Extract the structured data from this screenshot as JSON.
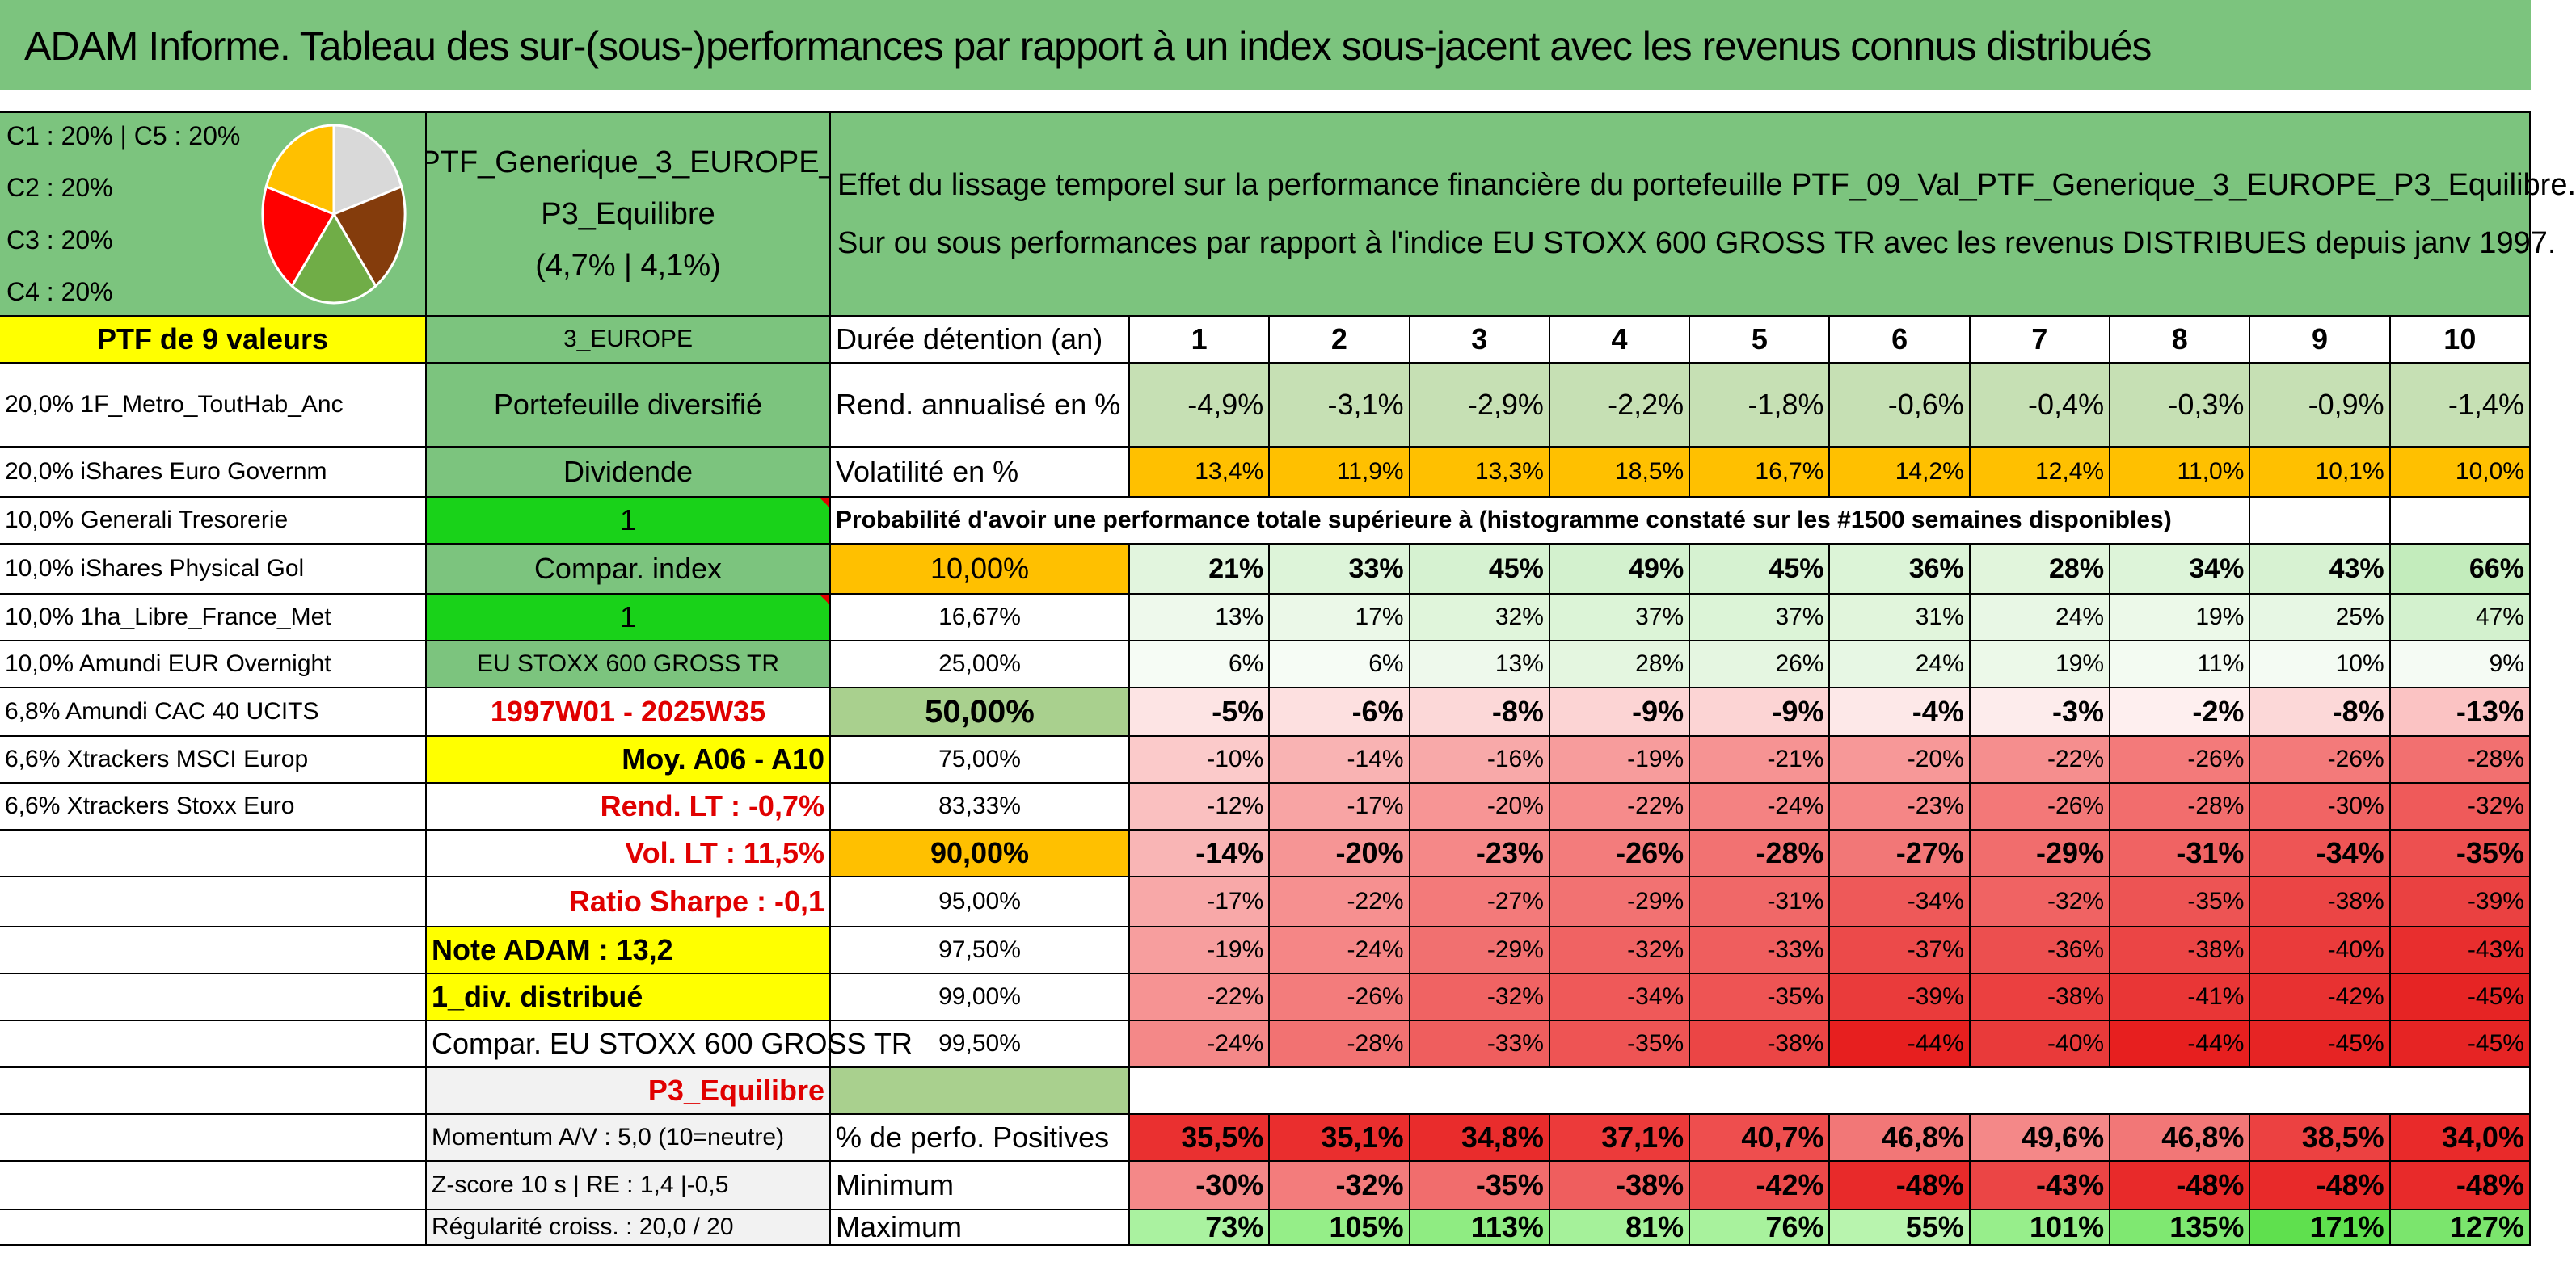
{
  "title": "ADAM Informe. Tableau des sur-(sous-)performances par rapport à un index sous-jacent avec les revenus connus distribués",
  "allocation": {
    "items": [
      "C1 : 20% | C5 : 20%",
      "C2 : 20%",
      "C3 : 20%",
      "C4 : 20%"
    ],
    "pie_colors": [
      "#d9d9d9",
      "#843c0c",
      "#70ad47",
      "#ff0000",
      "#ffc000"
    ]
  },
  "portfolio": {
    "name": "PTF_Generique_3_EUROPE_ P3_Equilibre",
    "perf": "(4,7% | 4,1%)"
  },
  "description": {
    "line1": "Effet du lissage temporel sur la performance financière du portefeuille PTF_09_Val_PTF_Generique_3_EUROPE_P3_Equilibre.",
    "line2": "Sur ou sous performances par rapport à l'indice EU STOXX 600 GROSS TR avec les revenus DISTRIBUES depuis janv 1997."
  },
  "holdings": {
    "header": "PTF de 9 valeurs",
    "items": [
      "20,0% 1F_Metro_ToutHab_Anc",
      "20,0% iShares Euro Governm",
      "10,0% Generali Tresorerie",
      "10,0% iShares Physical Gol",
      "10,0% 1ha_Libre_France_Met",
      "10,0% Amundi EUR Overnight",
      "6,8% Amundi CAC 40 UCITS",
      "6,6% Xtrackers MSCI Europ",
      "6,6% Xtrackers Stoxx Euro"
    ]
  },
  "info": {
    "region": "3_EUROPE",
    "type": "Portefeuille diversifié",
    "dividende": "Dividende",
    "one_a": "1",
    "compar": "Compar. index",
    "one_b": "1",
    "index": "EU STOXX 600 GROSS TR",
    "period": "1997W01 - 2025W35",
    "moy": "Moy. A06 - A10",
    "rend_lt": "Rend. LT : -0,7%",
    "vol_lt": "Vol. LT : 11,5%",
    "sharpe": "Ratio Sharpe : -0,1",
    "note": "Note ADAM : 13,2",
    "div": "1_div. distribué",
    "compar2": "Compar. EU STOXX 600 GROSS TR",
    "profile": "P3_Equilibre",
    "momentum": "Momentum A/V : 5,0 (10=neutre)",
    "zscore": "Z-score 10 s | RE : 1,4 |-0,5",
    "regularite": "Régularité croiss. : 20,0 / 20"
  },
  "table": {
    "duree_label": "Durée détention (an)",
    "years": [
      "1",
      "2",
      "3",
      "4",
      "5",
      "6",
      "7",
      "8",
      "9",
      "10"
    ],
    "rend_label": "Rend. annualisé en %",
    "rend": [
      "-4,9%",
      "-3,1%",
      "-2,9%",
      "-2,2%",
      "-1,8%",
      "-0,6%",
      "-0,4%",
      "-0,3%",
      "-0,9%",
      "-1,4%"
    ],
    "vol_label": "Volatilité en %",
    "vol": [
      "13,4%",
      "11,9%",
      "13,3%",
      "18,5%",
      "16,7%",
      "14,2%",
      "12,4%",
      "11,0%",
      "10,1%",
      "10,0%"
    ],
    "proba_label": "Probabilité d'avoir une performance totale supérieure à (histogramme constaté sur les #1500 semaines disponibles)",
    "quantiles": [
      {
        "q": "10,00%",
        "v": [
          "21%",
          "33%",
          "45%",
          "49%",
          "45%",
          "36%",
          "28%",
          "34%",
          "43%",
          "66%"
        ]
      },
      {
        "q": "16,67%",
        "v": [
          "13%",
          "17%",
          "32%",
          "37%",
          "37%",
          "31%",
          "24%",
          "19%",
          "25%",
          "47%"
        ]
      },
      {
        "q": "25,00%",
        "v": [
          "6%",
          "6%",
          "13%",
          "28%",
          "26%",
          "24%",
          "19%",
          "11%",
          "10%",
          "9%"
        ]
      },
      {
        "q": "50,00%",
        "v": [
          "-5%",
          "-6%",
          "-8%",
          "-9%",
          "-9%",
          "-4%",
          "-3%",
          "-2%",
          "-8%",
          "-13%"
        ]
      },
      {
        "q": "75,00%",
        "v": [
          "-10%",
          "-14%",
          "-16%",
          "-19%",
          "-21%",
          "-20%",
          "-22%",
          "-26%",
          "-26%",
          "-28%"
        ]
      },
      {
        "q": "83,33%",
        "v": [
          "-12%",
          "-17%",
          "-20%",
          "-22%",
          "-24%",
          "-23%",
          "-26%",
          "-28%",
          "-30%",
          "-32%"
        ]
      },
      {
        "q": "90,00%",
        "v": [
          "-14%",
          "-20%",
          "-23%",
          "-26%",
          "-28%",
          "-27%",
          "-29%",
          "-31%",
          "-34%",
          "-35%"
        ]
      },
      {
        "q": "95,00%",
        "v": [
          "-17%",
          "-22%",
          "-27%",
          "-29%",
          "-31%",
          "-34%",
          "-32%",
          "-35%",
          "-38%",
          "-39%"
        ]
      },
      {
        "q": "97,50%",
        "v": [
          "-19%",
          "-24%",
          "-29%",
          "-32%",
          "-33%",
          "-37%",
          "-36%",
          "-38%",
          "-40%",
          "-43%"
        ]
      },
      {
        "q": "99,00%",
        "v": [
          "-22%",
          "-26%",
          "-32%",
          "-34%",
          "-35%",
          "-39%",
          "-38%",
          "-41%",
          "-42%",
          "-45%"
        ]
      },
      {
        "q": "99,50%",
        "v": [
          "-24%",
          "-28%",
          "-33%",
          "-35%",
          "-38%",
          "-44%",
          "-40%",
          "-44%",
          "-45%",
          "-45%"
        ]
      }
    ],
    "pos_label": "% de perfo. Positives",
    "pos": [
      "35,5%",
      "35,1%",
      "34,8%",
      "37,1%",
      "40,7%",
      "46,8%",
      "49,6%",
      "46,8%",
      "38,5%",
      "34,0%"
    ],
    "min_label": "Minimum",
    "min": [
      "-30%",
      "-32%",
      "-35%",
      "-38%",
      "-42%",
      "-48%",
      "-43%",
      "-48%",
      "-48%",
      "-48%"
    ],
    "max_label": "Maximum",
    "max": [
      "73%",
      "105%",
      "113%",
      "81%",
      "76%",
      "55%",
      "101%",
      "135%",
      "171%",
      "127%"
    ]
  },
  "colors": {
    "rend": [
      "#c6e0b4",
      "#c6e0b4",
      "#c6e0b4",
      "#c6e0b4",
      "#c6e0b4",
      "#c6e0b4",
      "#c6e0b4",
      "#c6e0b4",
      "#c6e0b4",
      "#c6e0b4"
    ],
    "vol": [
      "#ffc000",
      "#ffc000",
      "#ffc000",
      "#ffc000",
      "#ffc000",
      "#ffc000",
      "#ffc000",
      "#ffc000",
      "#ffc000",
      "#ffc000"
    ],
    "quantiles": [
      [
        "#e2f5de",
        "#ddf4d9",
        "#d6f2d1",
        "#d3f1ce",
        "#d6f2d1",
        "#dcf4d7",
        "#e1f5dc",
        "#ddf4d9",
        "#d7f2d2",
        "#c3ecbc"
      ],
      [
        "#eef9ec",
        "#ebf8e8",
        "#e0f5db",
        "#dcf4d7",
        "#dcf4d7",
        "#e1f5dc",
        "#e8f7e5",
        "#ecf9e9",
        "#e7f7e4",
        "#d3f1ce"
      ],
      [
        "#f6fcf5",
        "#f6fcf5",
        "#eef9ec",
        "#e4f6e0",
        "#e5f6e1",
        "#e7f7e4",
        "#ecf9e9",
        "#f3fbf2",
        "#f4fbf3",
        "#f5fbf4"
      ],
      [
        "#fde4e4",
        "#fde0e0",
        "#fcd8d8",
        "#fcd4d4",
        "#fcd4d4",
        "#fde8e8",
        "#fdecec",
        "#feefef",
        "#fcd8d8",
        "#fbc3c3"
      ],
      [
        "#fbcaca",
        "#f9b3b3",
        "#f8a9a9",
        "#f79c9c",
        "#f69393",
        "#f79898",
        "#f58e8e",
        "#f37a7a",
        "#f37a7a",
        "#f27070"
      ],
      [
        "#fac0c0",
        "#f8a4a4",
        "#f79595",
        "#f68b8b",
        "#f48282",
        "#f58686",
        "#f37878",
        "#f26d6d",
        "#f16464",
        "#ef5a5a"
      ],
      [
        "#f9b5b5",
        "#f69595",
        "#f58888",
        "#f37c7c",
        "#f27272",
        "#f27777",
        "#f16d6d",
        "#f06363",
        "#ee5555",
        "#ed5050"
      ],
      [
        "#f8a8a8",
        "#f69090",
        "#f37a7a",
        "#f27272",
        "#f06868",
        "#ee5959",
        "#f06363",
        "#ed5454",
        "#eb4545",
        "#ea4141"
      ],
      [
        "#f79e9e",
        "#f58686",
        "#f17070",
        "#f06363",
        "#ef5e5e",
        "#ec4a4a",
        "#ec4f4f",
        "#eb4545",
        "#ea3b3b",
        "#e82e2e"
      ],
      [
        "#f69393",
        "#f37c7c",
        "#f06363",
        "#ef5959",
        "#ee5454",
        "#ea3b3b",
        "#eb4040",
        "#e93636",
        "#e83131",
        "#e62424"
      ],
      [
        "#f48888",
        "#f27272",
        "#ef5e5e",
        "#ee5454",
        "#eb4545",
        "#e71f1f",
        "#e93a3a",
        "#e71f1f",
        "#e62424",
        "#e62424"
      ]
    ],
    "pos": [
      "#ea3030",
      "#ea2e2e",
      "#e92c2c",
      "#ec3a3a",
      "#ee4e4e",
      "#f27777",
      "#f48888",
      "#f27777",
      "#ec4141",
      "#e92a2a"
    ],
    "min": [
      "#f48888",
      "#f37c7c",
      "#f16d6d",
      "#ef5e5e",
      "#ec4a4a",
      "#e82a2a",
      "#eb4545",
      "#e82a2a",
      "#e82a2a",
      "#e82a2a"
    ],
    "max": [
      "#aaf2a0",
      "#95ee88",
      "#8fec82",
      "#a5f19a",
      "#a8f29d",
      "#b8f4ae",
      "#97ee8b",
      "#7fe871",
      "#5fe04e",
      "#7be56d"
    ]
  }
}
